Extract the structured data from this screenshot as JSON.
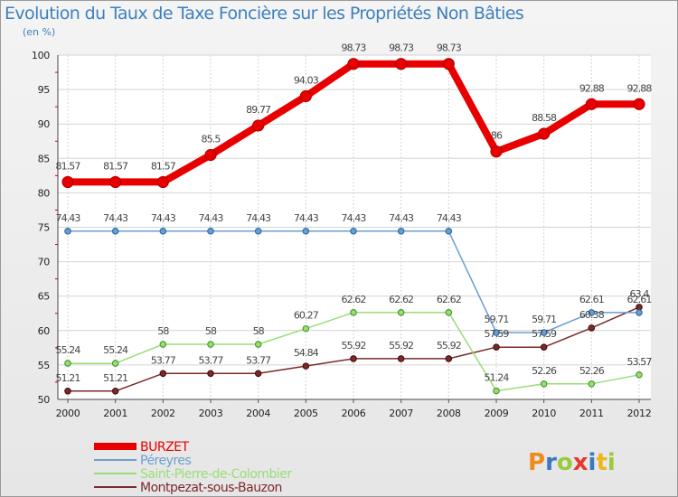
{
  "chart_data": {
    "type": "line",
    "title": "Evolution du Taux de Taxe Foncière sur les Propriétés Non Bâties",
    "ylabel": "(en %)",
    "xlabel": "",
    "x": [
      "2000",
      "2001",
      "2002",
      "2003",
      "2004",
      "2005",
      "2006",
      "2007",
      "2008",
      "2009",
      "2010",
      "2011",
      "2012"
    ],
    "yticks": [
      50,
      55,
      60,
      65,
      70,
      75,
      80,
      85,
      90,
      95,
      100
    ],
    "ylim": [
      50,
      100
    ],
    "grid": true,
    "legend_position": "bottom-left",
    "series": [
      {
        "name": "BURZET",
        "color": "#e80000",
        "values": [
          81.57,
          81.57,
          81.57,
          85.5,
          89.77,
          94.03,
          98.73,
          98.73,
          98.73,
          86,
          88.58,
          92.88,
          92.88
        ],
        "labels": [
          "81.57",
          "81.57",
          "81.57",
          "85.5",
          "89.77",
          "94.03",
          "98.73",
          "98.73",
          "98.73",
          "86",
          "88.58",
          "92.88",
          "92.88"
        ]
      },
      {
        "name": "Péreyres",
        "color": "#6a9fd0",
        "values": [
          74.43,
          74.43,
          74.43,
          74.43,
          74.43,
          74.43,
          74.43,
          74.43,
          74.43,
          59.71,
          59.71,
          62.61,
          62.61
        ],
        "labels": [
          "74.43",
          "74.43",
          "74.43",
          "74.43",
          "74.43",
          "74.43",
          "74.43",
          "74.43",
          "74.43",
          "59.71",
          "59.71",
          "62.61",
          "62.61"
        ]
      },
      {
        "name": "Saint-Pierre-de-Colombier",
        "color": "#99dd77",
        "values": [
          55.24,
          55.24,
          58,
          58,
          58,
          60.27,
          62.62,
          62.62,
          62.62,
          51.24,
          52.26,
          52.26,
          53.57
        ],
        "labels": [
          "55.24",
          "55.24",
          "58",
          "58",
          "58",
          "60.27",
          "62.62",
          "62.62",
          "62.62",
          "51.24",
          "52.26",
          "52.26",
          "53.57"
        ]
      },
      {
        "name": "Montpezat-sous-Bauzon",
        "color": "#7b2a2a",
        "values": [
          51.21,
          51.21,
          53.77,
          53.77,
          53.77,
          54.84,
          55.92,
          55.92,
          55.92,
          57.59,
          57.59,
          60.38,
          63.4
        ],
        "labels": [
          "51.21",
          "51.21",
          "53.77",
          "53.77",
          "53.77",
          "54.84",
          "55.92",
          "55.92",
          "55.92",
          "57.59",
          "57.59",
          "60.38",
          "63.4"
        ]
      }
    ]
  },
  "logo": {
    "text": "Proxiti"
  }
}
